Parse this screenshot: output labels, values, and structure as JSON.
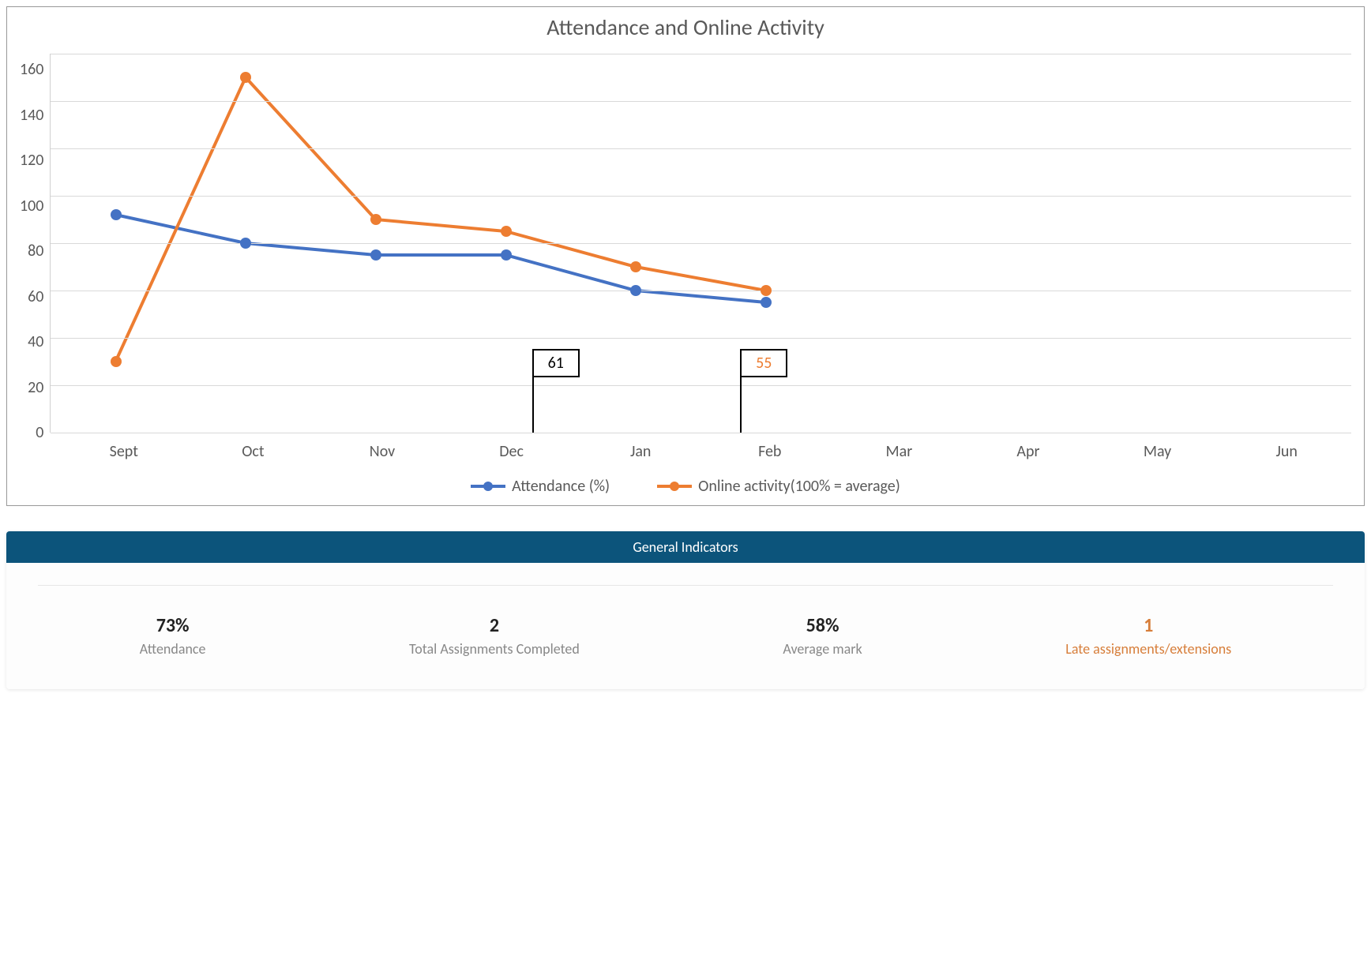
{
  "chart": {
    "type": "line",
    "title": "Attendance and Online Activity",
    "title_fontsize": 28,
    "title_color": "#595959",
    "background_color": "#ffffff",
    "border_color": "#999999",
    "grid_color": "#d9d9d9",
    "axis_label_color": "#595959",
    "axis_fontsize": 20,
    "ylim": [
      0,
      160
    ],
    "ytick_step": 20,
    "yticks": [
      160,
      140,
      120,
      100,
      80,
      60,
      40,
      20,
      0
    ],
    "categories": [
      "Sept",
      "Oct",
      "Nov",
      "Dec",
      "Jan",
      "Feb",
      "Mar",
      "Apr",
      "May",
      "Jun"
    ],
    "series": [
      {
        "name": "Attendance (%)",
        "color": "#4472c4",
        "line_width": 4,
        "marker_radius": 7,
        "values": [
          92,
          80,
          75,
          75,
          60,
          55,
          null,
          null,
          null,
          null
        ]
      },
      {
        "name": "Online activity(100% = average)",
        "color": "#ed7d31",
        "line_width": 4,
        "marker_radius": 7,
        "values": [
          30,
          150,
          90,
          85,
          70,
          60,
          null,
          null,
          null,
          null
        ]
      }
    ],
    "callouts": [
      {
        "text": "61",
        "color": "#000000",
        "x_left_pct": 37,
        "bottom_pct": 0
      },
      {
        "text": "55",
        "color": "#ed7d31",
        "x_left_pct": 53,
        "bottom_pct": 0
      }
    ],
    "legend_fontsize": 20,
    "legend_color": "#595959"
  },
  "indicators": {
    "header_label": "General Indicators",
    "header_bg": "#0c547b",
    "header_color": "#ffffff",
    "panel_bg": "#fdfdfd",
    "divider_color": "#e6e6e6",
    "value_color": "#222222",
    "label_color": "#888888",
    "warn_color": "#d77e3a",
    "items": [
      {
        "value": "73%",
        "label": "Attendance",
        "warn": false
      },
      {
        "value": "2",
        "label": "Total Assignments Completed",
        "warn": false
      },
      {
        "value": "58%",
        "label": "Average mark",
        "warn": false
      },
      {
        "value": "1",
        "label": "Late assignments/extensions",
        "warn": true
      }
    ]
  }
}
